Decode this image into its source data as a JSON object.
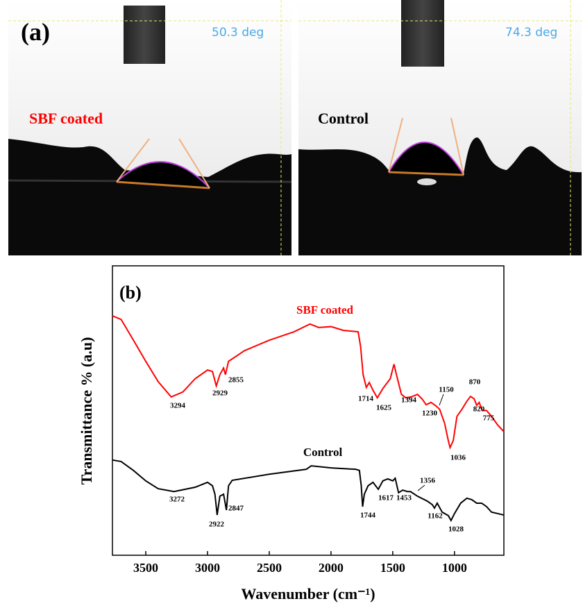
{
  "panel_a": {
    "label": "(a)",
    "left": {
      "angle": "50.3 deg",
      "caption": "SBF coated"
    },
    "right": {
      "angle": "74.3 deg",
      "caption": "Control"
    }
  },
  "chart_data": {
    "type": "line",
    "panel_label": "(b)",
    "x_label": "Wavenumber (cm⁻¹)",
    "y_label": "Transmittance % (a.u)",
    "xlim": [
      3770,
      600
    ],
    "xticks": [
      3500,
      3000,
      2500,
      2000,
      1500,
      1000
    ],
    "ylim": [
      0,
      100
    ],
    "series": [
      {
        "name": "SBF coated",
        "color": "#ff0000",
        "x": [
          3770,
          3700,
          3600,
          3500,
          3400,
          3294,
          3200,
          3100,
          3000,
          2960,
          2929,
          2900,
          2870,
          2855,
          2830,
          2700,
          2500,
          2300,
          2170,
          2100,
          2000,
          1900,
          1780,
          1760,
          1740,
          1714,
          1690,
          1660,
          1625,
          1580,
          1520,
          1490,
          1470,
          1430,
          1394,
          1350,
          1300,
          1260,
          1230,
          1190,
          1150,
          1120,
          1080,
          1050,
          1036,
          1010,
          980,
          940,
          900,
          870,
          840,
          820,
          800,
          775,
          740,
          700,
          650,
          600
        ],
        "values": [
          82.7,
          81.5,
          74.3,
          67,
          60,
          54.7,
          56.4,
          61,
          64,
          63.5,
          58.5,
          62.4,
          64.7,
          62.4,
          67,
          70.7,
          74.3,
          77.2,
          79.9,
          78.7,
          79,
          77.7,
          77.2,
          72,
          62.4,
          58,
          59.7,
          57,
          54.4,
          57.6,
          61,
          66,
          62.4,
          55.6,
          54.4,
          54.7,
          55.6,
          53.9,
          52,
          52.8,
          51.6,
          50.4,
          45.6,
          39.6,
          37.2,
          39.6,
          48,
          50.4,
          53.2,
          54.9,
          54,
          51.8,
          52.8,
          50,
          50,
          48,
          45,
          42.7
        ],
        "peaks": [
          3294,
          2929,
          2855,
          1714,
          1625,
          1394,
          1230,
          1150,
          1036,
          870,
          820,
          775
        ]
      },
      {
        "name": "Control",
        "color": "#000000",
        "x": [
          3770,
          3700,
          3600,
          3500,
          3400,
          3272,
          3100,
          3000,
          2960,
          2940,
          2922,
          2900,
          2870,
          2847,
          2830,
          2800,
          2500,
          2200,
          2160,
          2000,
          1800,
          1770,
          1755,
          1744,
          1730,
          1700,
          1660,
          1617,
          1580,
          1540,
          1500,
          1480,
          1453,
          1420,
          1380,
          1356,
          1300,
          1220,
          1180,
          1162,
          1140,
          1100,
          1050,
          1028,
          1000,
          950,
          900,
          860,
          820,
          780,
          740,
          700,
          650,
          600
        ],
        "values": [
          32.9,
          32.4,
          29.3,
          25.7,
          23,
          22,
          23.5,
          25.2,
          24,
          21.1,
          13.9,
          20.4,
          21.1,
          15.6,
          24,
          25.9,
          28,
          29.7,
          30.9,
          30.2,
          29.7,
          29.3,
          24,
          16.8,
          21.1,
          24,
          25.2,
          22.8,
          25.7,
          26.4,
          25.7,
          26.6,
          21.6,
          22.5,
          22,
          22,
          20.4,
          18.7,
          17.5,
          16.3,
          18,
          14.9,
          13.7,
          12,
          14.4,
          18,
          19.7,
          19.2,
          18,
          18,
          16.8,
          14.9,
          14.4,
          13.9
        ],
        "peaks": [
          3272,
          2922,
          2847,
          1744,
          1617,
          1453,
          1356,
          1162,
          1028
        ]
      }
    ]
  }
}
